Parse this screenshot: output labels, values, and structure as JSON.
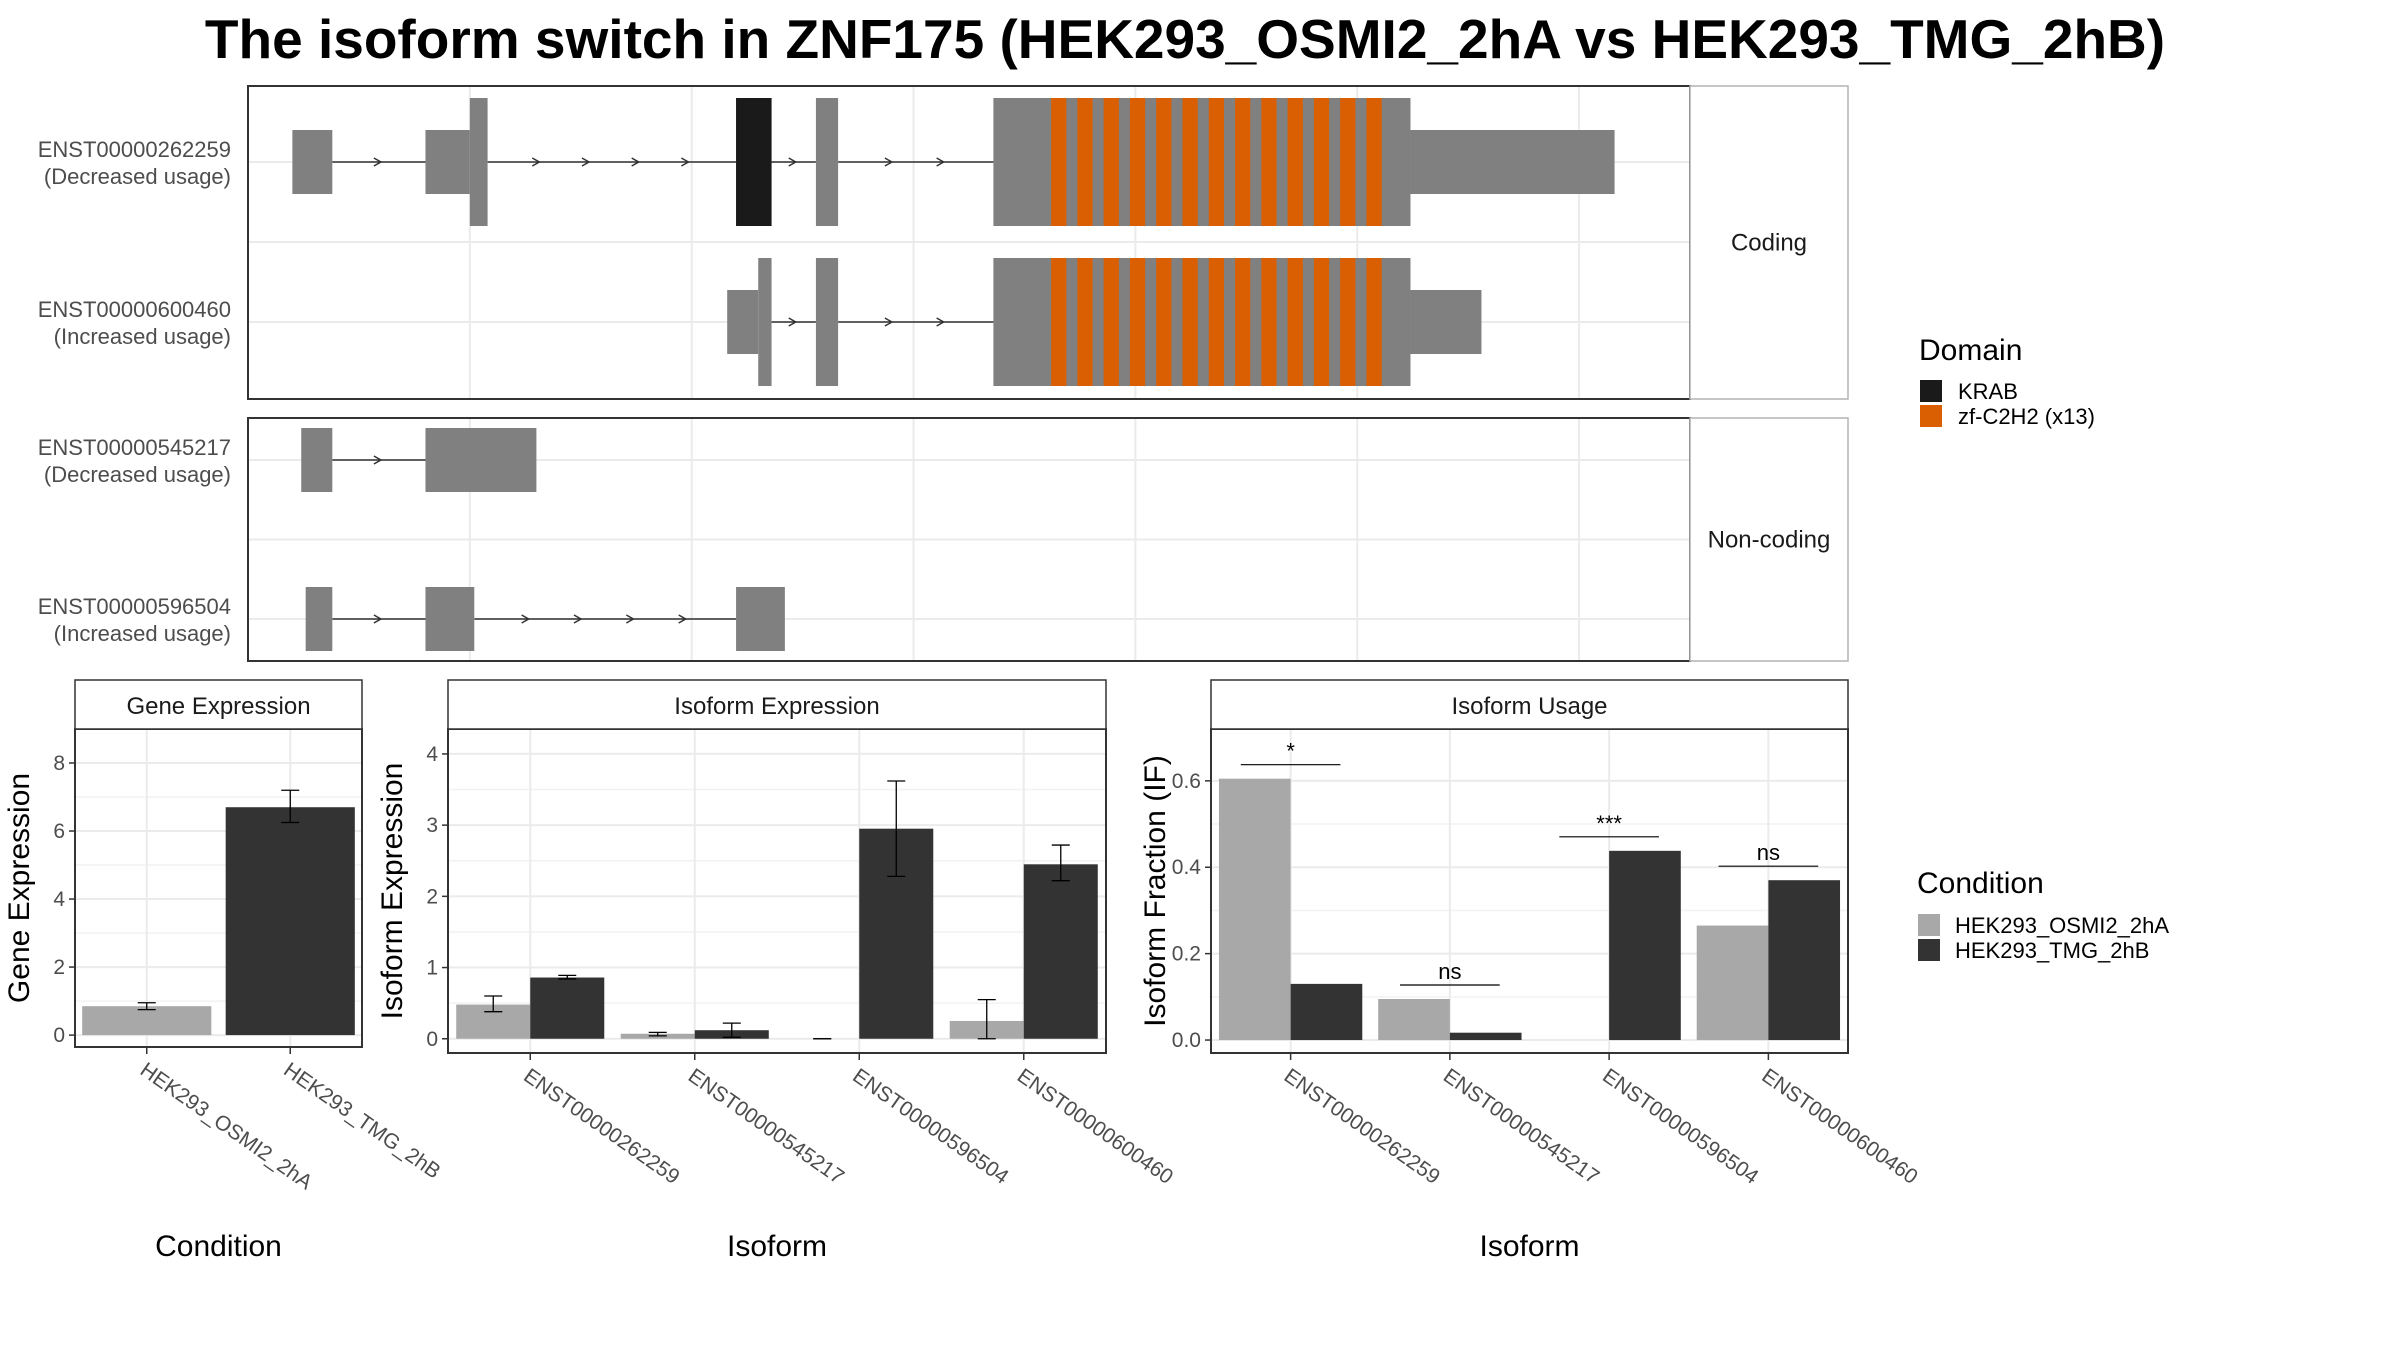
{
  "title": "The isoform switch in ZNF175 (HEK293_OSMI2_2hA vs HEK293_TMG_2hB)",
  "colors": {
    "exon": "#808080",
    "KRAB": "#1a1a1a",
    "zf-C2H2 (x13)": "#d95f02",
    "HEK293_OSMI2_2hA": "#a8a8a8",
    "HEK293_TMG_2hB": "#333333",
    "grid": "#ebebeb",
    "panel_border": "#333333",
    "strip_bg": "#ffffff"
  },
  "structure": {
    "facets": [
      {
        "label": "Coding",
        "isoforms": [
          {
            "id": "ENST00000262259",
            "usage": "(Decreased usage)",
            "exons": [
              [
                1.0,
                1.9,
                "utr"
              ],
              [
                4.0,
                5.0,
                "utr"
              ],
              [
                5.0,
                5.4,
                "cds"
              ],
              [
                11.0,
                11.8,
                "cds"
              ],
              [
                12.8,
                13.3,
                "cds"
              ],
              [
                16.8,
                26.2,
                "cds"
              ],
              [
                26.2,
                30.8,
                "utr"
              ]
            ],
            "domains": [
              [
                "KRAB",
                11.0,
                11.8
              ],
              [
                "zf-C2H2 (x13)",
                18.1,
                25.8,
                13
              ]
            ]
          },
          {
            "id": "ENST00000600460",
            "usage": "(Increased usage)",
            "exons": [
              [
                10.8,
                11.5,
                "utr"
              ],
              [
                11.5,
                11.8,
                "cds"
              ],
              [
                12.8,
                13.3,
                "cds"
              ],
              [
                16.8,
                26.2,
                "cds"
              ],
              [
                26.2,
                27.8,
                "utr"
              ]
            ],
            "domains": [
              [
                "zf-C2H2 (x13)",
                18.1,
                25.8,
                13
              ]
            ]
          }
        ]
      },
      {
        "label": "Non-coding",
        "isoforms": [
          {
            "id": "ENST00000545217",
            "usage": "(Decreased usage)",
            "exons": [
              [
                1.2,
                1.9,
                "utr"
              ],
              [
                4.0,
                6.5,
                "utr"
              ]
            ],
            "domains": []
          },
          {
            "id": "ENST00000596504",
            "usage": "(Increased usage)",
            "exons": [
              [
                1.3,
                1.9,
                "utr"
              ],
              [
                4.0,
                5.1,
                "utr"
              ],
              [
                11.0,
                12.1,
                "utr"
              ]
            ],
            "domains": []
          }
        ]
      }
    ]
  },
  "legends": {
    "domain_title": "Domain",
    "domains": [
      "KRAB",
      "zf-C2H2 (x13)"
    ],
    "condition_title": "Condition",
    "conditions": [
      "HEK293_OSMI2_2hA",
      "HEK293_TMG_2hB"
    ]
  },
  "chart_data": [
    {
      "type": "bar",
      "title": "Gene Expression",
      "xlabel": "Condition",
      "ylabel": "Gene Expression",
      "categories": [
        "HEK293_OSMI2_2hA",
        "HEK293_TMG_2hB"
      ],
      "values": [
        0.85,
        6.7
      ],
      "errors": [
        [
          0.75,
          0.95
        ],
        [
          6.25,
          7.2
        ]
      ],
      "ylim": [
        -0.35,
        9.0
      ],
      "yticks": [
        0,
        2,
        4,
        6,
        8
      ],
      "grid": true,
      "legend": "none"
    },
    {
      "type": "bar",
      "title": "Isoform Expression",
      "xlabel": "Isoform",
      "ylabel": "Isoform Expression",
      "categories": [
        "ENST00000262259",
        "ENST00000545217",
        "ENST00000596504",
        "ENST00000600460"
      ],
      "series": [
        {
          "name": "HEK293_OSMI2_2hA",
          "values": [
            0.48,
            0.07,
            0.0,
            0.25
          ],
          "errors": [
            [
              0.38,
              0.6
            ],
            [
              0.04,
              0.09
            ],
            [
              0.0,
              0.0
            ],
            [
              0.0,
              0.55
            ]
          ]
        },
        {
          "name": "HEK293_TMG_2hB",
          "values": [
            0.86,
            0.12,
            2.95,
            2.45
          ],
          "errors": [
            [
              0.84,
              0.89
            ],
            [
              0.02,
              0.22
            ],
            [
              2.28,
              3.62
            ],
            [
              2.22,
              2.72
            ]
          ]
        }
      ],
      "ylim": [
        -0.2,
        4.35
      ],
      "yticks": [
        0,
        1,
        2,
        3,
        4
      ],
      "grid": true,
      "legend": "right"
    },
    {
      "type": "bar",
      "title": "Isoform Usage",
      "xlabel": "Isoform",
      "ylabel": "Isoform Fraction (IF)",
      "categories": [
        "ENST00000262259",
        "ENST00000545217",
        "ENST00000596504",
        "ENST00000600460"
      ],
      "series": [
        {
          "name": "HEK293_OSMI2_2hA",
          "values": [
            0.605,
            0.095,
            0.0,
            0.265
          ]
        },
        {
          "name": "HEK293_TMG_2hB",
          "values": [
            0.13,
            0.017,
            0.438,
            0.37
          ]
        }
      ],
      "significance": [
        "*",
        "ns",
        "***",
        "ns"
      ],
      "ylim": [
        -0.03,
        0.72
      ],
      "yticks": [
        0.0,
        0.2,
        0.4,
        0.6
      ],
      "tick_format": "0.0",
      "grid": true,
      "legend": "right"
    }
  ]
}
